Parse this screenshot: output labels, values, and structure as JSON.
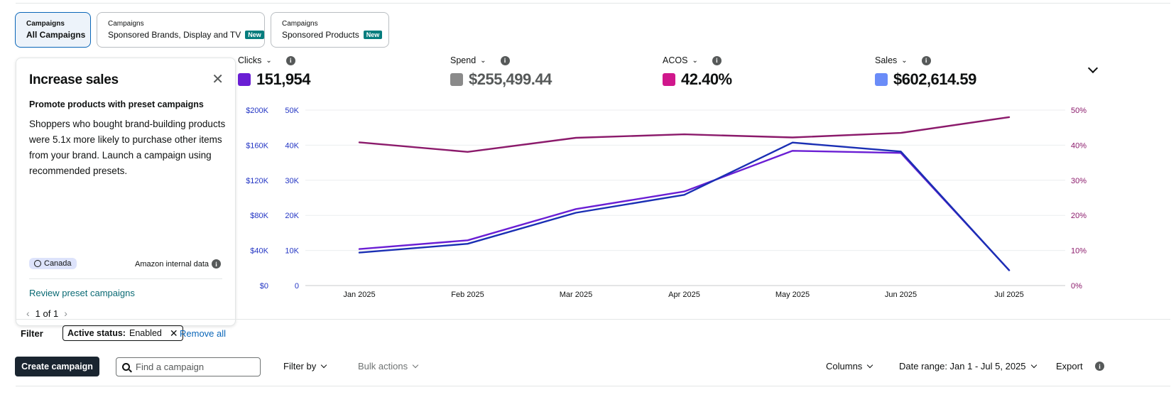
{
  "tabs": [
    {
      "small": "Campaigns",
      "label": "All Campaigns",
      "badge": ""
    },
    {
      "small": "Campaigns",
      "label": "Sponsored Brands, Display and TV",
      "badge": "New"
    },
    {
      "small": "Campaigns",
      "label": "Sponsored Products",
      "badge": "New"
    }
  ],
  "promo": {
    "title": "Increase sales",
    "subtitle": "Promote products with preset campaigns",
    "body": "Shoppers who bought brand-building products were 5.1x more likely to purchase other items from your brand. Launch a campaign using recommended presets.",
    "region": "Canada",
    "source": "Amazon internal data",
    "link": "Review preset campaigns",
    "pager": "1 of 1"
  },
  "metrics": [
    {
      "label": "Clicks",
      "value": "151,954",
      "color": "#6a1ed4"
    },
    {
      "label": "Spend",
      "value": "$255,499.44",
      "color": "#8a8a8a"
    },
    {
      "label": "ACOS",
      "value": "42.40%",
      "color": "#d0178c"
    },
    {
      "label": "Sales",
      "value": "$602,614.59",
      "color": "#6a8cf8"
    }
  ],
  "chart_data": {
    "type": "line",
    "categories": [
      "Jan 2025",
      "Feb 2025",
      "Mar 2025",
      "Apr 2025",
      "May 2025",
      "Jun 2025",
      "Jul 2025"
    ],
    "axes": {
      "left_outer": {
        "ticks": [
          "$0",
          "$40K",
          "$80K",
          "$120K",
          "$160K",
          "$200K"
        ],
        "range": [
          0,
          200000
        ],
        "color": "#2335c4"
      },
      "left_inner": {
        "ticks": [
          "0",
          "10K",
          "20K",
          "30K",
          "40K",
          "50K"
        ],
        "range": [
          0,
          50000
        ],
        "color": "#2335c4"
      },
      "right": {
        "ticks": [
          "0%",
          "10%",
          "20%",
          "30%",
          "40%",
          "50%"
        ],
        "range": [
          0,
          50
        ],
        "color": "#8b1a6b"
      }
    },
    "series": [
      {
        "name": "Clicks",
        "axis": "left_inner",
        "color": "#6a1ed4",
        "values": [
          10400,
          12900,
          21800,
          26800,
          38400,
          37800,
          4400
        ]
      },
      {
        "name": "Sales",
        "axis": "left_outer",
        "color": "#1a2fb4",
        "values": [
          37600,
          47600,
          83000,
          103400,
          163000,
          152800,
          17400
        ]
      },
      {
        "name": "ACOS",
        "axis": "right",
        "color": "#8b1a6b",
        "values": [
          40.8,
          38.1,
          42.1,
          43.1,
          42.2,
          43.5,
          48.0
        ]
      }
    ],
    "grid": true
  },
  "filter": {
    "label": "Filter",
    "chip_key": "Active status:",
    "chip_value": "Enabled",
    "remove_all": "Remove all"
  },
  "toolbar": {
    "create": "Create campaign",
    "search_placeholder": "Find a campaign",
    "filter_by": "Filter by",
    "bulk_actions": "Bulk actions",
    "columns": "Columns",
    "date_range": "Date range: Jan 1 - Jul 5, 2025",
    "export": "Export"
  }
}
